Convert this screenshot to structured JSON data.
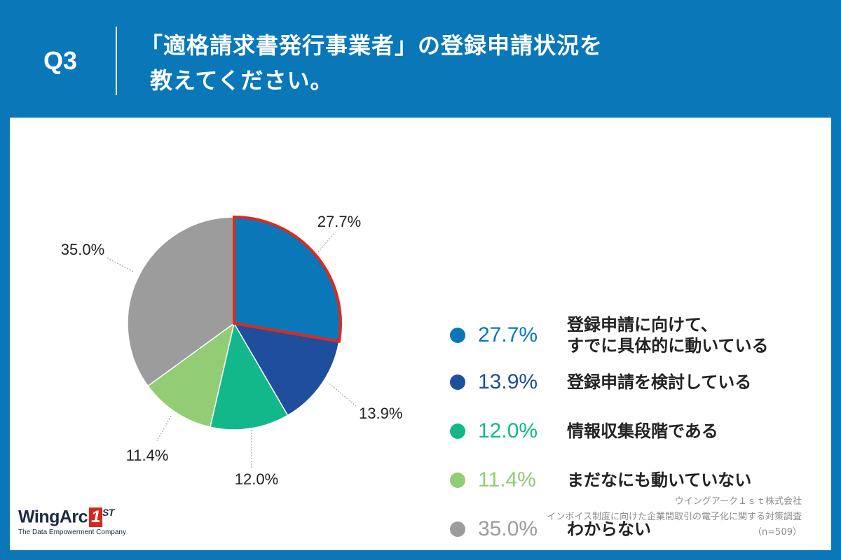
{
  "header": {
    "question": "Q3",
    "title_line1": "「適格請求書発行事業者」の登録申請状況を",
    "title_line2": "教えてください。"
  },
  "chart_data": {
    "type": "pie",
    "categories": [
      "登録申請に向けて、すでに具体的に動いている",
      "登録申請を検討している",
      "情報収集段階である",
      "まだなにも動いていない",
      "わからない"
    ],
    "values": [
      27.7,
      13.9,
      12.0,
      11.4,
      35.0
    ],
    "labels": [
      "27.7%",
      "13.9%",
      "12.0%",
      "11.4%",
      "35.0%"
    ],
    "colors": [
      "#0a78b8",
      "#1f4e9c",
      "#12b889",
      "#92cc74",
      "#9c9c9c"
    ],
    "highlight_index": 0,
    "highlight_color": "#e0281c",
    "legend_placement": "right"
  },
  "legend": [
    {
      "pct": "27.7%",
      "lines": [
        "登録申請に向けて、",
        "すでに具体的に動いている"
      ]
    },
    {
      "pct": "13.9%",
      "lines": [
        "登録申請を検討している"
      ]
    },
    {
      "pct": "12.0%",
      "lines": [
        "情報収集段階である"
      ]
    },
    {
      "pct": "11.4%",
      "lines": [
        "まだなにも動いていない"
      ]
    },
    {
      "pct": "35.0%",
      "lines": [
        "わからない"
      ]
    }
  ],
  "source": {
    "line1": "ウイングアーク１ｓｔ株式会社",
    "line2": "インボイス制度に向けた企業間取引の電子化に関する対策調査",
    "line3": "（n=509）"
  },
  "logo": {
    "name": "WingArc",
    "mark": "1",
    "suffix": "ST",
    "tagline": "The Data Empowerment Company"
  }
}
